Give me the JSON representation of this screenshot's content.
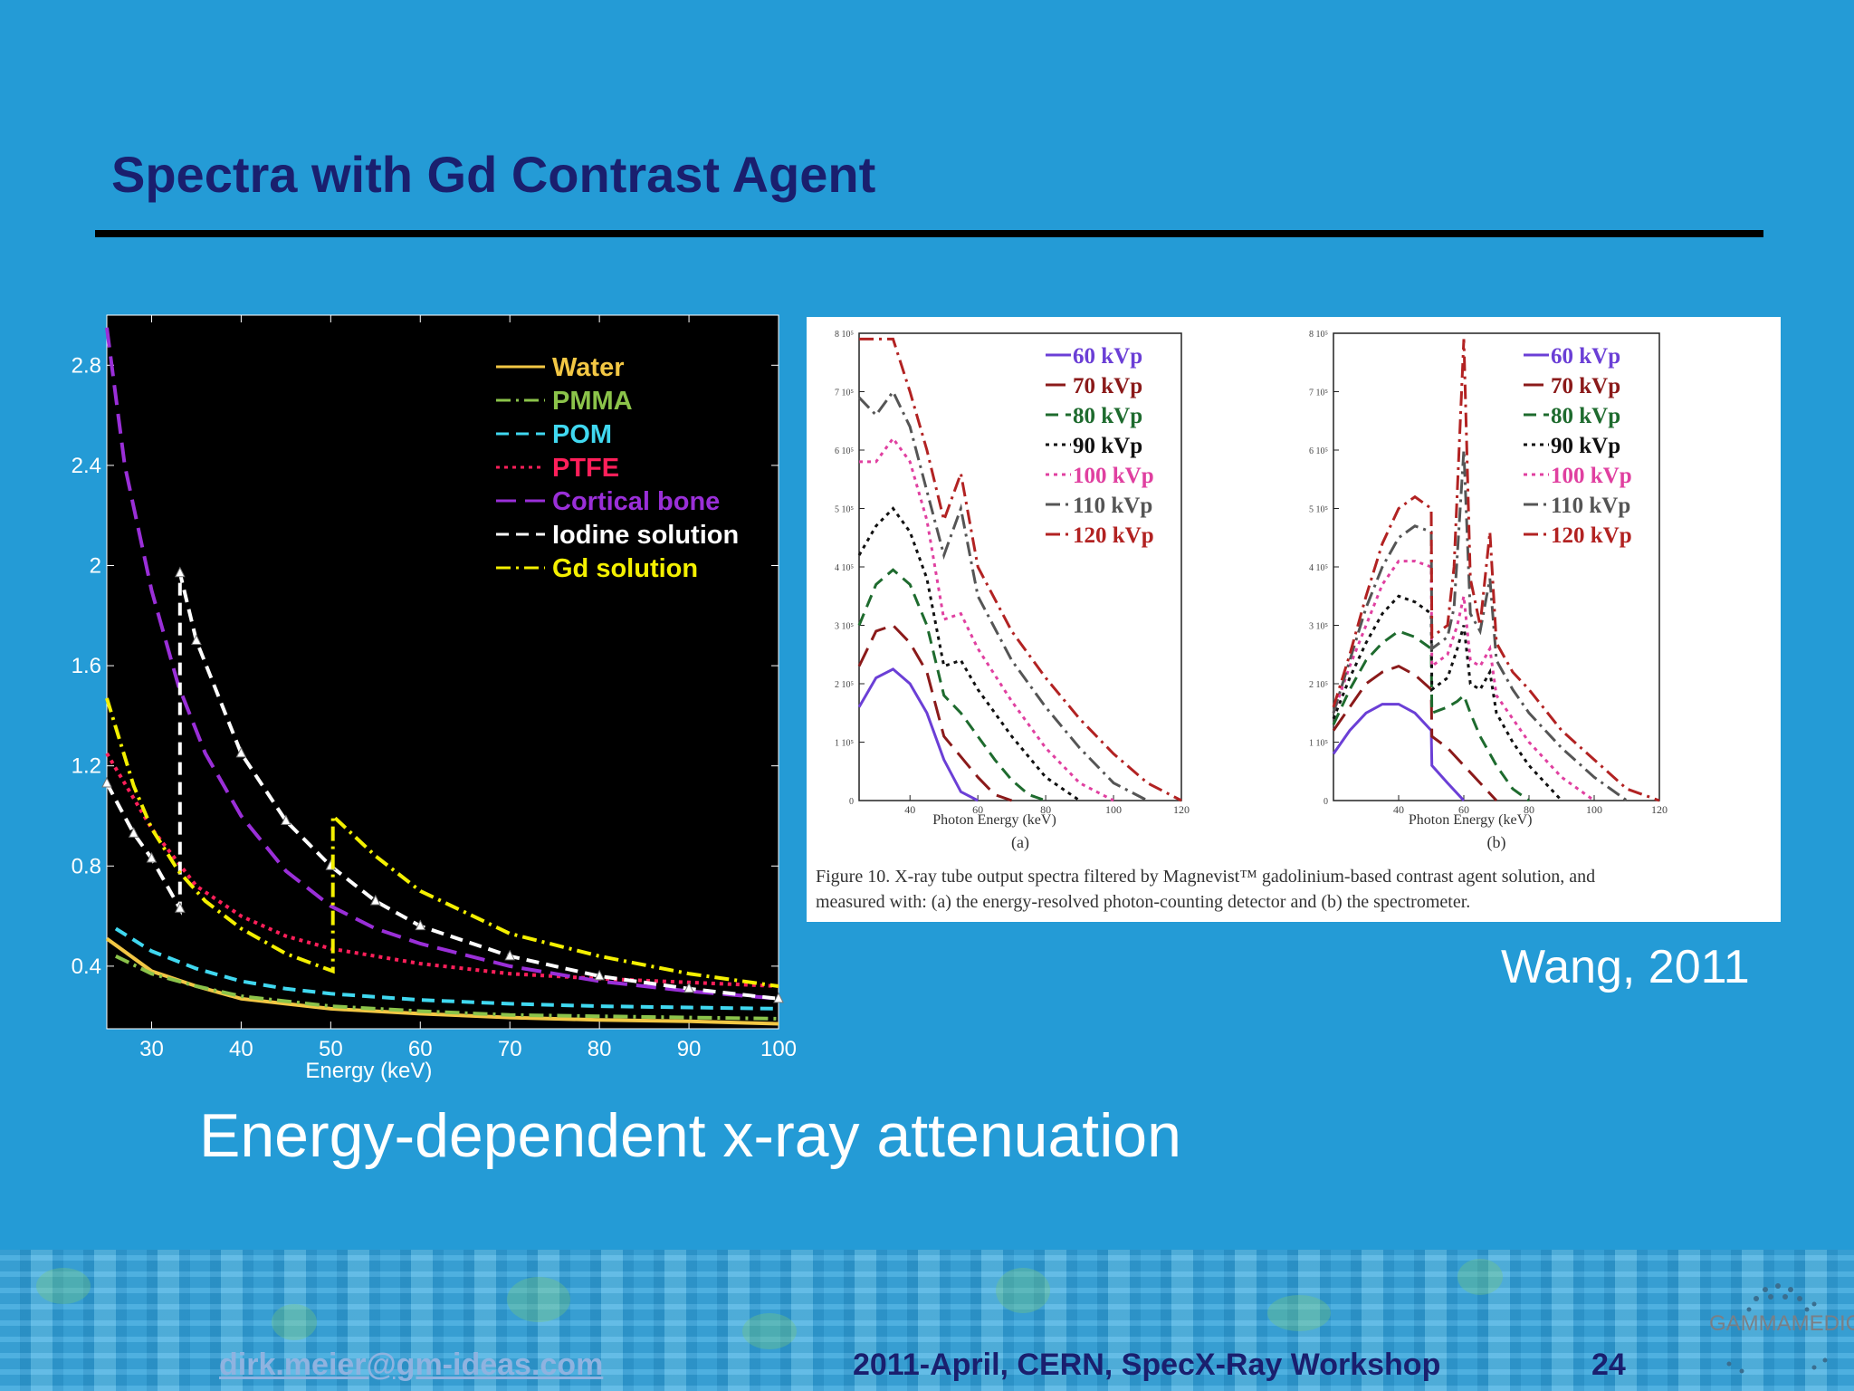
{
  "slide": {
    "title": "Spectra with Gd Contrast Agent",
    "subtitle": "Energy-dependent x-ray attenuation",
    "credit": "Wang, 2011"
  },
  "footer": {
    "email": "dirk.meier@gm-ideas.com",
    "event": "2011-April, CERN, SpecX-Ray  Workshop",
    "page": "24",
    "logo_text": "GAMMAMEDICA"
  },
  "chart_data": [
    {
      "type": "line",
      "xlabel": "Energy (keV)",
      "ylabel": "",
      "xlim": [
        25,
        100
      ],
      "ylim": [
        0.15,
        3.0
      ],
      "xticks": [
        30,
        40,
        50,
        60,
        70,
        80,
        90,
        100
      ],
      "yticks": [
        0.4,
        0.8,
        1.2,
        1.6,
        2.0,
        2.4,
        2.8
      ],
      "ytick_labels": [
        "0.4",
        "0.8",
        "1.2",
        "1.6",
        "2",
        "2.4",
        "2.8"
      ],
      "legend_position": "top-right",
      "series": [
        {
          "name": "Water",
          "color": "#f2c744",
          "dash": "solid",
          "x": [
            25,
            30,
            35,
            40,
            45,
            50,
            60,
            70,
            80,
            90,
            100
          ],
          "y": [
            0.51,
            0.38,
            0.32,
            0.27,
            0.25,
            0.23,
            0.21,
            0.195,
            0.185,
            0.18,
            0.17
          ]
        },
        {
          "name": "PMMA",
          "color": "#8bc34a",
          "dash": "dashdot",
          "x": [
            26,
            30,
            35,
            40,
            45,
            50,
            60,
            70,
            80,
            90,
            100
          ],
          "y": [
            0.44,
            0.37,
            0.32,
            0.28,
            0.26,
            0.24,
            0.22,
            0.205,
            0.2,
            0.195,
            0.19
          ]
        },
        {
          "name": "POM",
          "color": "#40d8f0",
          "dash": "dash",
          "x": [
            26,
            30,
            35,
            40,
            45,
            50,
            60,
            70,
            80,
            90,
            100
          ],
          "y": [
            0.55,
            0.46,
            0.39,
            0.34,
            0.31,
            0.29,
            0.265,
            0.25,
            0.24,
            0.235,
            0.23
          ]
        },
        {
          "name": "PTFE",
          "color": "#ff1f5a",
          "dash": "dot",
          "x": [
            25,
            30,
            35,
            40,
            45,
            50,
            60,
            70,
            80,
            90,
            100
          ],
          "y": [
            1.25,
            0.95,
            0.72,
            0.6,
            0.52,
            0.47,
            0.41,
            0.37,
            0.35,
            0.335,
            0.32
          ]
        },
        {
          "name": "Cortical bone",
          "color": "#9a2fd8",
          "dash": "longdash",
          "x": [
            25,
            27,
            30,
            33,
            36,
            40,
            45,
            50,
            55,
            60,
            70,
            80,
            90,
            100
          ],
          "y": [
            2.95,
            2.4,
            1.9,
            1.52,
            1.25,
            1.0,
            0.78,
            0.64,
            0.55,
            0.49,
            0.4,
            0.34,
            0.3,
            0.27
          ]
        },
        {
          "name": "Iodine solution",
          "color": "#ffffff",
          "dash": "dash",
          "marker": "triangle",
          "x": [
            25,
            28,
            30,
            33.17,
            33.17,
            35,
            40,
            45,
            50,
            55,
            60,
            70,
            80,
            90,
            100
          ],
          "y": [
            1.13,
            0.93,
            0.83,
            0.63,
            1.97,
            1.7,
            1.25,
            0.98,
            0.8,
            0.66,
            0.56,
            0.44,
            0.36,
            0.31,
            0.27
          ]
        },
        {
          "name": "Gd solution",
          "color": "#f4f000",
          "dash": "dashdot",
          "x": [
            25,
            28,
            30,
            33,
            36,
            40,
            45,
            50.24,
            50.24,
            55,
            60,
            70,
            80,
            90,
            100
          ],
          "y": [
            1.47,
            1.12,
            0.95,
            0.78,
            0.66,
            0.55,
            0.45,
            0.38,
            1.0,
            0.84,
            0.7,
            0.53,
            0.44,
            0.37,
            0.32
          ]
        }
      ]
    },
    {
      "type": "line",
      "caption": "Figure 10. X-ray tube output spectra filtered by Magnevist™ gadolinium-based contrast agent solution, and measured with: (a) the energy-resolved photon-counting detector and (b) the spectrometer.",
      "panels": [
        {
          "label": "(a)",
          "xlabel": "Photon Energy (keV)",
          "xlim": [
            25,
            120
          ],
          "ylim": [
            0,
            800000
          ],
          "xticks": [
            40,
            60,
            80,
            100,
            120
          ],
          "ytick_labels": [
            "0",
            "1 10⁵",
            "2 10⁵",
            "3 10⁵",
            "4 10⁵",
            "5 10⁵",
            "6 10⁵",
            "7 10⁵",
            "8 10⁵"
          ],
          "legend": [
            "60 kVp",
            "70 kVp",
            "80 kVp",
            "90 kVp",
            "100 kVp",
            "110 kVp",
            "120 kVp"
          ],
          "series": [
            {
              "name": "60 kVp",
              "color": "#6b3fd6",
              "dash": "solid",
              "x": [
                25,
                30,
                35,
                40,
                45,
                50,
                55,
                60
              ],
              "y": [
                160000,
                210000,
                225000,
                200000,
                150000,
                70000,
                15000,
                0
              ]
            },
            {
              "name": "70 kVp",
              "color": "#8b1a1a",
              "dash": "longdash",
              "x": [
                25,
                30,
                35,
                40,
                45,
                50,
                55,
                60,
                65,
                70
              ],
              "y": [
                230000,
                290000,
                300000,
                270000,
                220000,
                110000,
                75000,
                40000,
                10000,
                0
              ]
            },
            {
              "name": "80 kVp",
              "color": "#1e6b2e",
              "dash": "dash",
              "x": [
                25,
                30,
                35,
                40,
                45,
                50,
                55,
                60,
                65,
                70,
                75,
                80
              ],
              "y": [
                300000,
                370000,
                395000,
                370000,
                300000,
                180000,
                150000,
                110000,
                70000,
                35000,
                10000,
                0
              ]
            },
            {
              "name": "90 kVp",
              "color": "#111111",
              "dash": "dot",
              "x": [
                25,
                30,
                35,
                40,
                45,
                50,
                55,
                60,
                70,
                80,
                90
              ],
              "y": [
                420000,
                470000,
                500000,
                460000,
                380000,
                230000,
                240000,
                190000,
                110000,
                40000,
                0
              ]
            },
            {
              "name": "100 kVp",
              "color": "#e040a0",
              "dash": "dot",
              "x": [
                25,
                30,
                35,
                40,
                45,
                50,
                55,
                60,
                70,
                80,
                90,
                100
              ],
              "y": [
                580000,
                580000,
                620000,
                580000,
                480000,
                310000,
                320000,
                260000,
                170000,
                90000,
                30000,
                0
              ]
            },
            {
              "name": "110 kVp",
              "color": "#555555",
              "dash": "dashdot",
              "x": [
                25,
                30,
                35,
                40,
                45,
                50,
                55,
                60,
                70,
                80,
                90,
                100,
                110
              ],
              "y": [
                690000,
                660000,
                700000,
                640000,
                530000,
                420000,
                500000,
                350000,
                240000,
                160000,
                90000,
                30000,
                0
              ]
            },
            {
              "name": "120 kVp",
              "color": "#b22222",
              "dash": "dashdot",
              "x": [
                25,
                30,
                35,
                40,
                45,
                50,
                55,
                60,
                70,
                80,
                90,
                100,
                110,
                120
              ],
              "y": [
                790000,
                790000,
                790000,
                700000,
                600000,
                480000,
                560000,
                400000,
                290000,
                210000,
                140000,
                80000,
                30000,
                0
              ]
            }
          ]
        },
        {
          "label": "(b)",
          "xlabel": "Photon Energy (keV)",
          "xlim": [
            20,
            120
          ],
          "ylim": [
            0,
            800000
          ],
          "xticks": [
            40,
            60,
            80,
            100,
            120
          ],
          "ytick_labels": [
            "0",
            "1 10⁵",
            "2 10⁵",
            "3 10⁵",
            "4 10⁵",
            "5 10⁵",
            "6 10⁵",
            "7 10⁵",
            "8 10⁵"
          ],
          "legend": [
            "60 kVp",
            "70 kVp",
            "80 kVp",
            "90 kVp",
            "100 kVp",
            "110 kVp",
            "120 kVp"
          ],
          "series": [
            {
              "name": "60 kVp",
              "color": "#6b3fd6",
              "dash": "solid",
              "x": [
                20,
                25,
                30,
                35,
                40,
                45,
                50,
                50.2,
                55,
                60
              ],
              "y": [
                80000,
                120000,
                150000,
                165000,
                165000,
                150000,
                120000,
                60000,
                30000,
                0
              ]
            },
            {
              "name": "70 kVp",
              "color": "#8b1a1a",
              "dash": "longdash",
              "x": [
                20,
                25,
                30,
                35,
                40,
                45,
                50,
                50.2,
                55,
                60,
                65,
                70
              ],
              "y": [
                120000,
                160000,
                200000,
                220000,
                230000,
                215000,
                190000,
                110000,
                90000,
                60000,
                30000,
                0
              ]
            },
            {
              "name": "80 kVp",
              "color": "#1e6b2e",
              "dash": "dash",
              "x": [
                20,
                25,
                30,
                35,
                40,
                45,
                50,
                50.2,
                55,
                58,
                60,
                62,
                65,
                70,
                75,
                80
              ],
              "y": [
                130000,
                190000,
                240000,
                270000,
                290000,
                280000,
                260000,
                150000,
                160000,
                170000,
                180000,
                150000,
                110000,
                60000,
                20000,
                0
              ]
            },
            {
              "name": "90 kVp",
              "color": "#111111",
              "dash": "dot",
              "x": [
                20,
                25,
                30,
                35,
                40,
                45,
                50,
                50.2,
                55,
                58,
                60,
                62,
                65,
                68,
                70,
                75,
                80,
                90
              ],
              "y": [
                140000,
                210000,
                270000,
                320000,
                350000,
                340000,
                320000,
                190000,
                210000,
                260000,
                300000,
                200000,
                190000,
                220000,
                150000,
                100000,
                60000,
                0
              ]
            },
            {
              "name": "100 kVp",
              "color": "#e040a0",
              "dash": "dot",
              "x": [
                20,
                25,
                30,
                35,
                40,
                45,
                50,
                50.2,
                55,
                58,
                60,
                62,
                65,
                68,
                70,
                75,
                80,
                90,
                100
              ],
              "y": [
                150000,
                230000,
                300000,
                370000,
                410000,
                410000,
                400000,
                230000,
                250000,
                300000,
                350000,
                240000,
                230000,
                260000,
                180000,
                140000,
                100000,
                40000,
                0
              ]
            },
            {
              "name": "110 kVp",
              "color": "#555555",
              "dash": "dashdot",
              "x": [
                20,
                25,
                30,
                35,
                40,
                45,
                50,
                50.2,
                55,
                57,
                60,
                62,
                65,
                68,
                70,
                75,
                80,
                90,
                100,
                110
              ],
              "y": [
                150000,
                240000,
                330000,
                400000,
                450000,
                470000,
                460000,
                260000,
                280000,
                330000,
                600000,
                320000,
                290000,
                380000,
                240000,
                190000,
                150000,
                90000,
                40000,
                0
              ]
            },
            {
              "name": "120 kVp",
              "color": "#b22222",
              "dash": "dashdot",
              "x": [
                20,
                25,
                30,
                35,
                40,
                45,
                50,
                50.2,
                55,
                57,
                60,
                62,
                65,
                68,
                70,
                75,
                80,
                90,
                100,
                110,
                120
              ],
              "y": [
                160000,
                250000,
                350000,
                440000,
                500000,
                520000,
                500000,
                280000,
                300000,
                400000,
                790000,
                380000,
                300000,
                460000,
                270000,
                220000,
                190000,
                120000,
                70000,
                20000,
                0
              ]
            }
          ]
        }
      ]
    }
  ]
}
